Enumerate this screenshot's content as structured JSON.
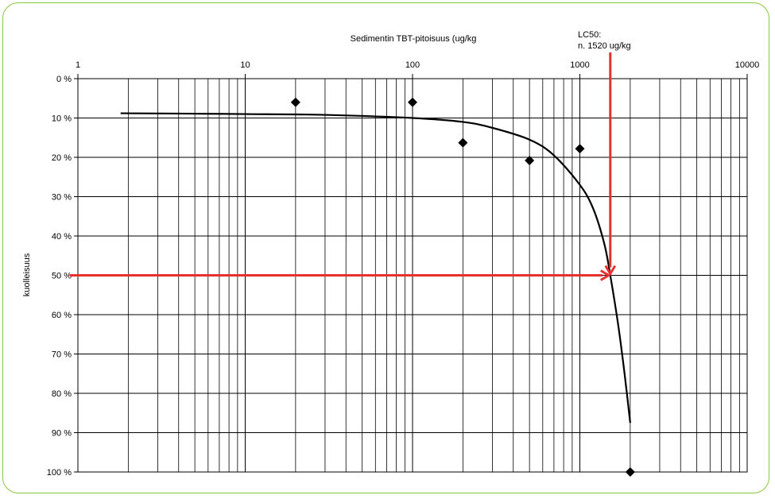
{
  "chart_data": {
    "type": "scatter",
    "title": "",
    "xlabel": "Sedimentin TBT-pitoisuus (ug/kg",
    "ylabel": "kuolleisuus",
    "xscale": "log",
    "xlim": [
      1,
      10000
    ],
    "ylim": [
      0,
      100
    ],
    "y_reversed": true,
    "x_axis_position": "top",
    "grid": true,
    "x_ticks": [
      "1",
      "10",
      "100",
      "1000",
      "10000"
    ],
    "y_ticks": [
      "0 %",
      "10 %",
      "20 %",
      "30 %",
      "40 %",
      "50 %",
      "60 %",
      "70 %",
      "80 %",
      "90 %",
      "100 %"
    ],
    "series": [
      {
        "kind": "points",
        "marker": "diamond",
        "color": "#000000",
        "x": [
          20,
          100,
          200,
          500,
          1000,
          2000
        ],
        "y": [
          6,
          6,
          16.3,
          20.8,
          17.8,
          100
        ]
      },
      {
        "kind": "fitted-curve",
        "color": "#000000",
        "x": [
          1.8,
          5,
          10,
          30,
          100,
          200,
          300,
          500,
          700,
          1000,
          1200,
          1400,
          1520,
          1700,
          1850,
          2000
        ],
        "y": [
          8.8,
          8.9,
          9,
          9.2,
          10,
          11,
          12.5,
          15.5,
          19.5,
          27,
          33,
          42,
          50,
          63,
          75,
          87.5
        ]
      }
    ],
    "annotation": {
      "lines": [
        "LC50:",
        "n. 1520 ug/kg"
      ],
      "x": 1520,
      "y": 50,
      "color": "#e8312f"
    }
  }
}
